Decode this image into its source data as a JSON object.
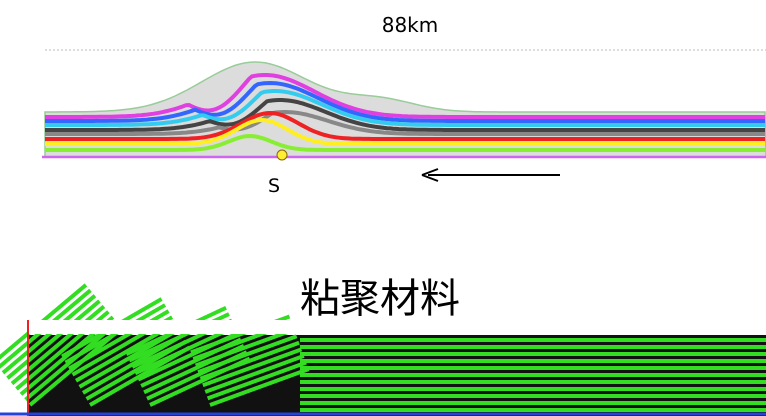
{
  "labels": {
    "scale": "88km",
    "point": "S",
    "caption": "粘聚材料"
  }
}
